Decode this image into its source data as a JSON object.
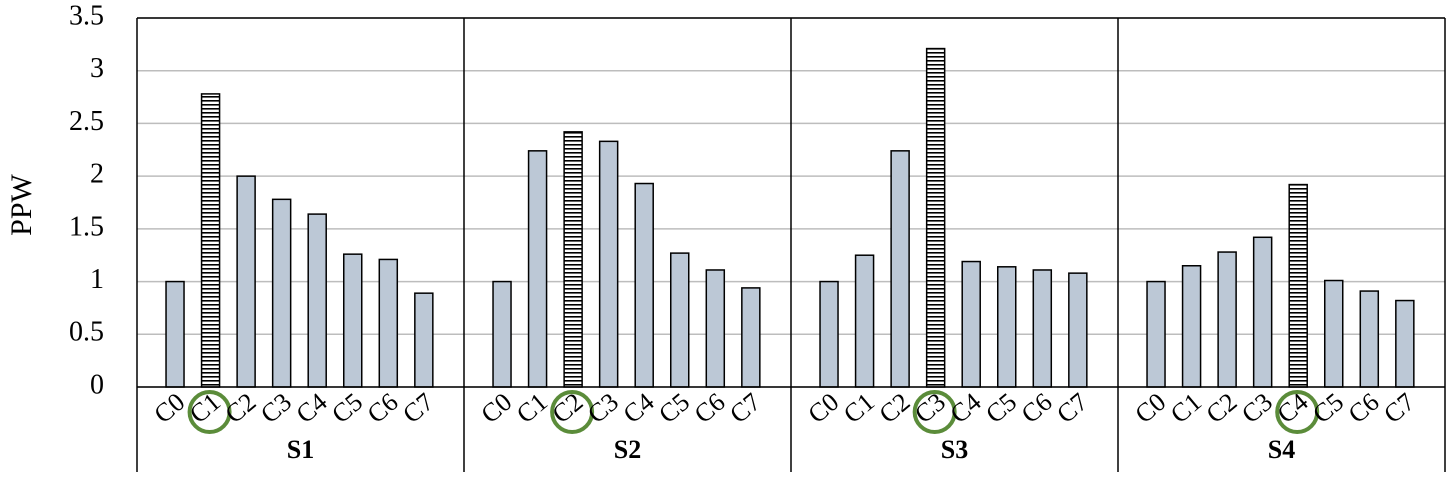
{
  "chart_data": {
    "type": "bar",
    "ylabel": "PPW",
    "categories": [
      "C0",
      "C1",
      "C2",
      "C3",
      "C4",
      "C5",
      "C6",
      "C7"
    ],
    "series": [
      {
        "name": "S1",
        "values": [
          1.0,
          2.78,
          2.0,
          1.78,
          1.64,
          1.26,
          1.21,
          0.89
        ],
        "highlight": 1
      },
      {
        "name": "S2",
        "values": [
          1.0,
          2.24,
          2.42,
          2.33,
          1.93,
          1.27,
          1.11,
          0.94
        ],
        "highlight": 2
      },
      {
        "name": "S3",
        "values": [
          1.0,
          1.25,
          2.24,
          3.21,
          1.19,
          1.14,
          1.11,
          1.08
        ],
        "highlight": 3
      },
      {
        "name": "S4",
        "values": [
          1.0,
          1.15,
          1.28,
          1.42,
          1.92,
          1.01,
          0.91,
          0.82
        ],
        "highlight": 4
      }
    ],
    "color": "#bcc8d6",
    "highlight_color": "#000000",
    "circle_color": "#5b8c3a",
    "ylim": [
      0,
      3.5
    ],
    "yticks": [
      0,
      0.5,
      1,
      1.5,
      2,
      2.5,
      3,
      3.5
    ],
    "grid": true
  }
}
